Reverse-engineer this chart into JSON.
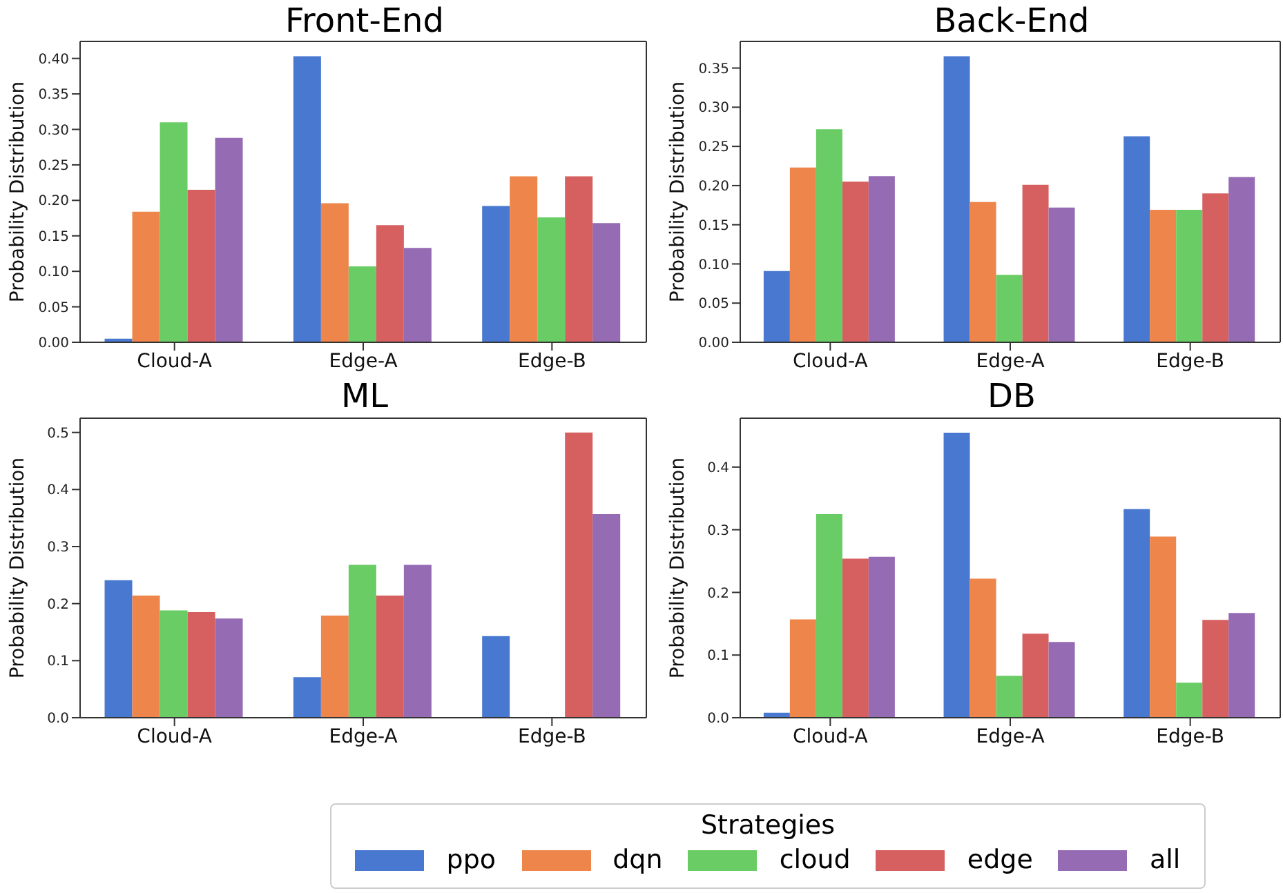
{
  "chart_data": [
    {
      "type": "bar",
      "title": "Front-End",
      "ylabel": "Probability Distribution",
      "categories": [
        "Cloud-A",
        "Edge-A",
        "Edge-B"
      ],
      "ylim": [
        0,
        0.424
      ],
      "yticks": [
        {
          "value": 0,
          "label": "0.00"
        },
        {
          "value": 0.05,
          "label": "0.05"
        },
        {
          "value": 0.1,
          "label": "0.10"
        },
        {
          "value": 0.15,
          "label": "0.15"
        },
        {
          "value": 0.2,
          "label": "0.20"
        },
        {
          "value": 0.25,
          "label": "0.25"
        },
        {
          "value": 0.3,
          "label": "0.30"
        },
        {
          "value": 0.35,
          "label": "0.35"
        },
        {
          "value": 0.4,
          "label": "0.40"
        }
      ],
      "series": [
        {
          "color": "#4878d0",
          "values": [
            0.005,
            0.403,
            0.192
          ]
        },
        {
          "color": "#ee854a",
          "values": [
            0.184,
            0.196,
            0.234
          ]
        },
        {
          "color": "#6acc64",
          "values": [
            0.31,
            0.107,
            0.176
          ]
        },
        {
          "color": "#d65f5f",
          "values": [
            0.215,
            0.165,
            0.234
          ]
        },
        {
          "color": "#956cb4",
          "values": [
            0.288,
            0.133,
            0.168
          ]
        }
      ]
    },
    {
      "type": "bar",
      "title": "Back-End",
      "ylabel": "Probability Distribution",
      "categories": [
        "Cloud-A",
        "Edge-A",
        "Edge-B"
      ],
      "ylim": [
        0,
        0.384
      ],
      "yticks": [
        {
          "value": 0,
          "label": "0.00"
        },
        {
          "value": 0.05,
          "label": "0.05"
        },
        {
          "value": 0.1,
          "label": "0.10"
        },
        {
          "value": 0.15,
          "label": "0.15"
        },
        {
          "value": 0.2,
          "label": "0.20"
        },
        {
          "value": 0.25,
          "label": "0.25"
        },
        {
          "value": 0.3,
          "label": "0.30"
        },
        {
          "value": 0.35,
          "label": "0.35"
        }
      ],
      "series": [
        {
          "color": "#4878d0",
          "values": [
            0.091,
            0.365,
            0.263
          ]
        },
        {
          "color": "#ee854a",
          "values": [
            0.223,
            0.179,
            0.169
          ]
        },
        {
          "color": "#6acc64",
          "values": [
            0.272,
            0.086,
            0.169
          ]
        },
        {
          "color": "#d65f5f",
          "values": [
            0.205,
            0.201,
            0.19
          ]
        },
        {
          "color": "#956cb4",
          "values": [
            0.212,
            0.172,
            0.211
          ]
        }
      ]
    },
    {
      "type": "bar",
      "title": "ML",
      "ylabel": "Probability Distribution",
      "categories": [
        "Cloud-A",
        "Edge-A",
        "Edge-B"
      ],
      "ylim": [
        0,
        0.525
      ],
      "yticks": [
        {
          "value": 0,
          "label": "0.0"
        },
        {
          "value": 0.1,
          "label": "0.1"
        },
        {
          "value": 0.2,
          "label": "0.2"
        },
        {
          "value": 0.3,
          "label": "0.3"
        },
        {
          "value": 0.4,
          "label": "0.4"
        },
        {
          "value": 0.5,
          "label": "0.5"
        }
      ],
      "series": [
        {
          "color": "#4878d0",
          "values": [
            0.241,
            0.071,
            0.143
          ]
        },
        {
          "color": "#ee854a",
          "values": [
            0.214,
            0.179,
            0
          ]
        },
        {
          "color": "#6acc64",
          "values": [
            0.188,
            0.268,
            0
          ]
        },
        {
          "color": "#d65f5f",
          "values": [
            0.185,
            0.214,
            0.5
          ]
        },
        {
          "color": "#956cb4",
          "values": [
            0.174,
            0.268,
            0.357
          ]
        }
      ]
    },
    {
      "type": "bar",
      "title": "DB",
      "ylabel": "Probability Distribution",
      "categories": [
        "Cloud-A",
        "Edge-A",
        "Edge-B"
      ],
      "ylim": [
        0,
        0.478
      ],
      "yticks": [
        {
          "value": 0,
          "label": "0.0"
        },
        {
          "value": 0.1,
          "label": "0.1"
        },
        {
          "value": 0.2,
          "label": "0.2"
        },
        {
          "value": 0.3,
          "label": "0.3"
        },
        {
          "value": 0.4,
          "label": "0.4"
        }
      ],
      "legend": "bottom",
      "legend_title": "Strategies",
      "series": [
        {
          "name": "ppo",
          "color": "#4878d0",
          "values": [
            0.008,
            0.455,
            0.333
          ]
        },
        {
          "name": "dqn",
          "color": "#ee854a",
          "values": [
            0.157,
            0.222,
            0.289
          ]
        },
        {
          "name": "cloud",
          "color": "#6acc64",
          "values": [
            0.325,
            0.067,
            0.056
          ]
        },
        {
          "name": "edge",
          "color": "#d65f5f",
          "values": [
            0.254,
            0.134,
            0.156
          ]
        },
        {
          "name": "all",
          "color": "#956cb4",
          "values": [
            0.257,
            0.121,
            0.167
          ]
        }
      ]
    }
  ]
}
